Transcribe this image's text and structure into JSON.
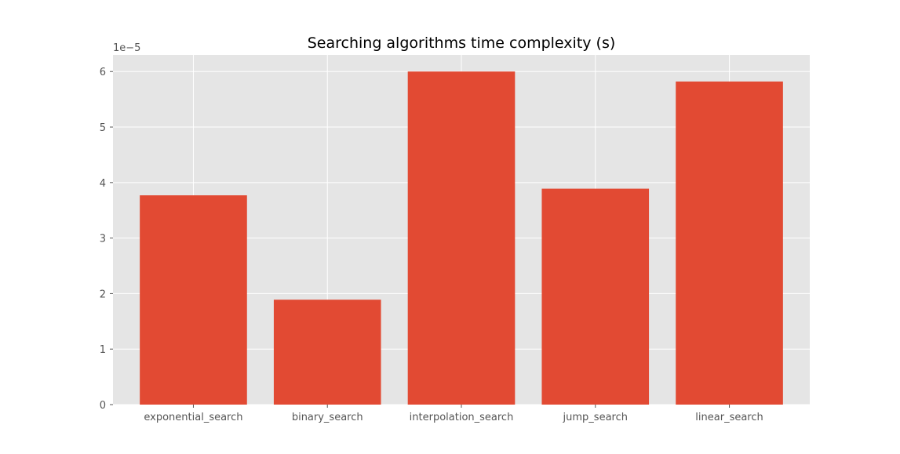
{
  "chart_data": {
    "type": "bar",
    "title": "Searching algorithms time complexity (s)",
    "xlabel": "",
    "ylabel": "",
    "categories": [
      "exponential_search",
      "binary_search",
      "interpolation_search",
      "jump_search",
      "linear_search"
    ],
    "values": [
      3.77e-05,
      1.89e-05,
      6e-05,
      3.89e-05,
      5.82e-05
    ],
    "y_offset_label": "1e−5",
    "y_tick_values": [
      0,
      1,
      2,
      3,
      4,
      5,
      6
    ],
    "y_tick_labels": [
      "0",
      "1",
      "2",
      "3",
      "4",
      "5",
      "6"
    ],
    "ylim": [
      0,
      6.3e-05
    ],
    "grid": true,
    "colors": {
      "bar": "#e24a33",
      "plot_background": "#e5e5e5",
      "grid": "#ffffff",
      "tick_text": "#555555"
    }
  }
}
